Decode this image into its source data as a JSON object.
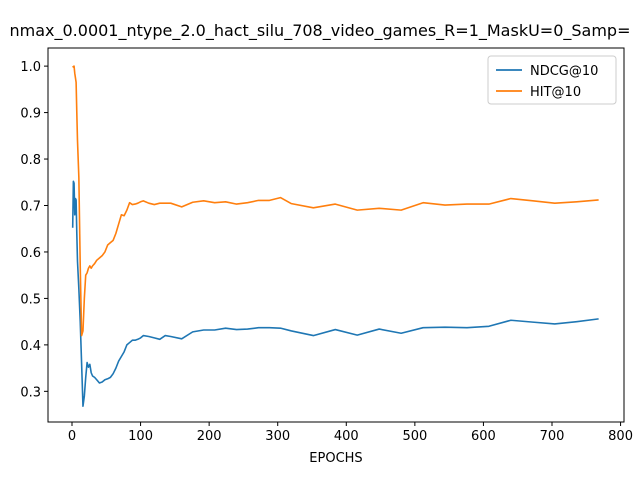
{
  "chart_data": {
    "type": "line",
    "title": "nmax_0.0001_ntype_2.0_hact_silu_708_video_games_R=1_MaskU=0_Samp=",
    "xlabel": "EPOCHS",
    "ylabel": "",
    "xlim": [
      -35,
      805
    ],
    "ylim": [
      0.234,
      1.039
    ],
    "xticks": [
      0,
      100,
      200,
      300,
      400,
      500,
      600,
      700,
      800
    ],
    "yticks": [
      0.3,
      0.4,
      0.5,
      0.6,
      0.7,
      0.8,
      0.9,
      1.0
    ],
    "xtick_labels": [
      "0",
      "100",
      "200",
      "300",
      "400",
      "500",
      "600",
      "700",
      "800"
    ],
    "ytick_labels": [
      "0.3",
      "0.4",
      "0.5",
      "0.6",
      "0.7",
      "0.8",
      "0.9",
      "1.0"
    ],
    "grid": false,
    "legend_position": "top-right",
    "series": [
      {
        "name": "NDCG@10",
        "color": "#1f77b4",
        "x": [
          1,
          2,
          3,
          4,
          5,
          6,
          7,
          8,
          10,
          12,
          14,
          16,
          18,
          20,
          22,
          24,
          26,
          28,
          30,
          33,
          36,
          40,
          44,
          48,
          52,
          56,
          60,
          64,
          68,
          72,
          76,
          80,
          84,
          88,
          92,
          96,
          100,
          104,
          112,
          120,
          128,
          136,
          144,
          160,
          176,
          192,
          208,
          224,
          240,
          256,
          272,
          288,
          304,
          320,
          352,
          384,
          416,
          448,
          480,
          512,
          544,
          576,
          608,
          640,
          672,
          704,
          736,
          768
        ],
        "values": [
          0.652,
          0.752,
          0.748,
          0.68,
          0.715,
          0.712,
          0.64,
          0.58,
          0.52,
          0.45,
          0.36,
          0.268,
          0.29,
          0.33,
          0.362,
          0.352,
          0.358,
          0.34,
          0.333,
          0.33,
          0.325,
          0.318,
          0.32,
          0.325,
          0.327,
          0.33,
          0.338,
          0.35,
          0.365,
          0.375,
          0.385,
          0.4,
          0.405,
          0.41,
          0.41,
          0.412,
          0.415,
          0.42,
          0.418,
          0.415,
          0.412,
          0.42,
          0.418,
          0.413,
          0.428,
          0.432,
          0.432,
          0.436,
          0.433,
          0.434,
          0.437,
          0.437,
          0.436,
          0.43,
          0.42,
          0.433,
          0.421,
          0.434,
          0.425,
          0.437,
          0.438,
          0.437,
          0.44,
          0.453,
          0.449,
          0.445,
          0.45,
          0.456
        ]
      },
      {
        "name": "HIT@10",
        "color": "#ff7f0e",
        "x": [
          1,
          2,
          3,
          4,
          5,
          6,
          7,
          8,
          10,
          12,
          14,
          16,
          18,
          20,
          22,
          24,
          26,
          28,
          30,
          33,
          36,
          40,
          44,
          48,
          52,
          56,
          60,
          64,
          68,
          72,
          76,
          80,
          84,
          88,
          92,
          96,
          100,
          104,
          112,
          120,
          128,
          136,
          144,
          160,
          176,
          192,
          208,
          224,
          240,
          256,
          272,
          288,
          304,
          320,
          352,
          384,
          416,
          448,
          480,
          512,
          544,
          576,
          608,
          640,
          672,
          704,
          736,
          768
        ],
        "values": [
          1.0,
          0.998,
          1.0,
          0.985,
          0.975,
          0.965,
          0.9,
          0.84,
          0.76,
          0.57,
          0.42,
          0.43,
          0.5,
          0.55,
          0.555,
          0.565,
          0.57,
          0.565,
          0.57,
          0.575,
          0.582,
          0.587,
          0.592,
          0.6,
          0.615,
          0.62,
          0.625,
          0.64,
          0.66,
          0.68,
          0.678,
          0.69,
          0.706,
          0.702,
          0.703,
          0.705,
          0.708,
          0.71,
          0.705,
          0.702,
          0.705,
          0.705,
          0.705,
          0.697,
          0.707,
          0.71,
          0.706,
          0.708,
          0.703,
          0.706,
          0.711,
          0.711,
          0.717,
          0.704,
          0.695,
          0.703,
          0.69,
          0.694,
          0.69,
          0.706,
          0.701,
          0.703,
          0.703,
          0.715,
          0.71,
          0.705,
          0.708,
          0.712
        ]
      }
    ]
  }
}
